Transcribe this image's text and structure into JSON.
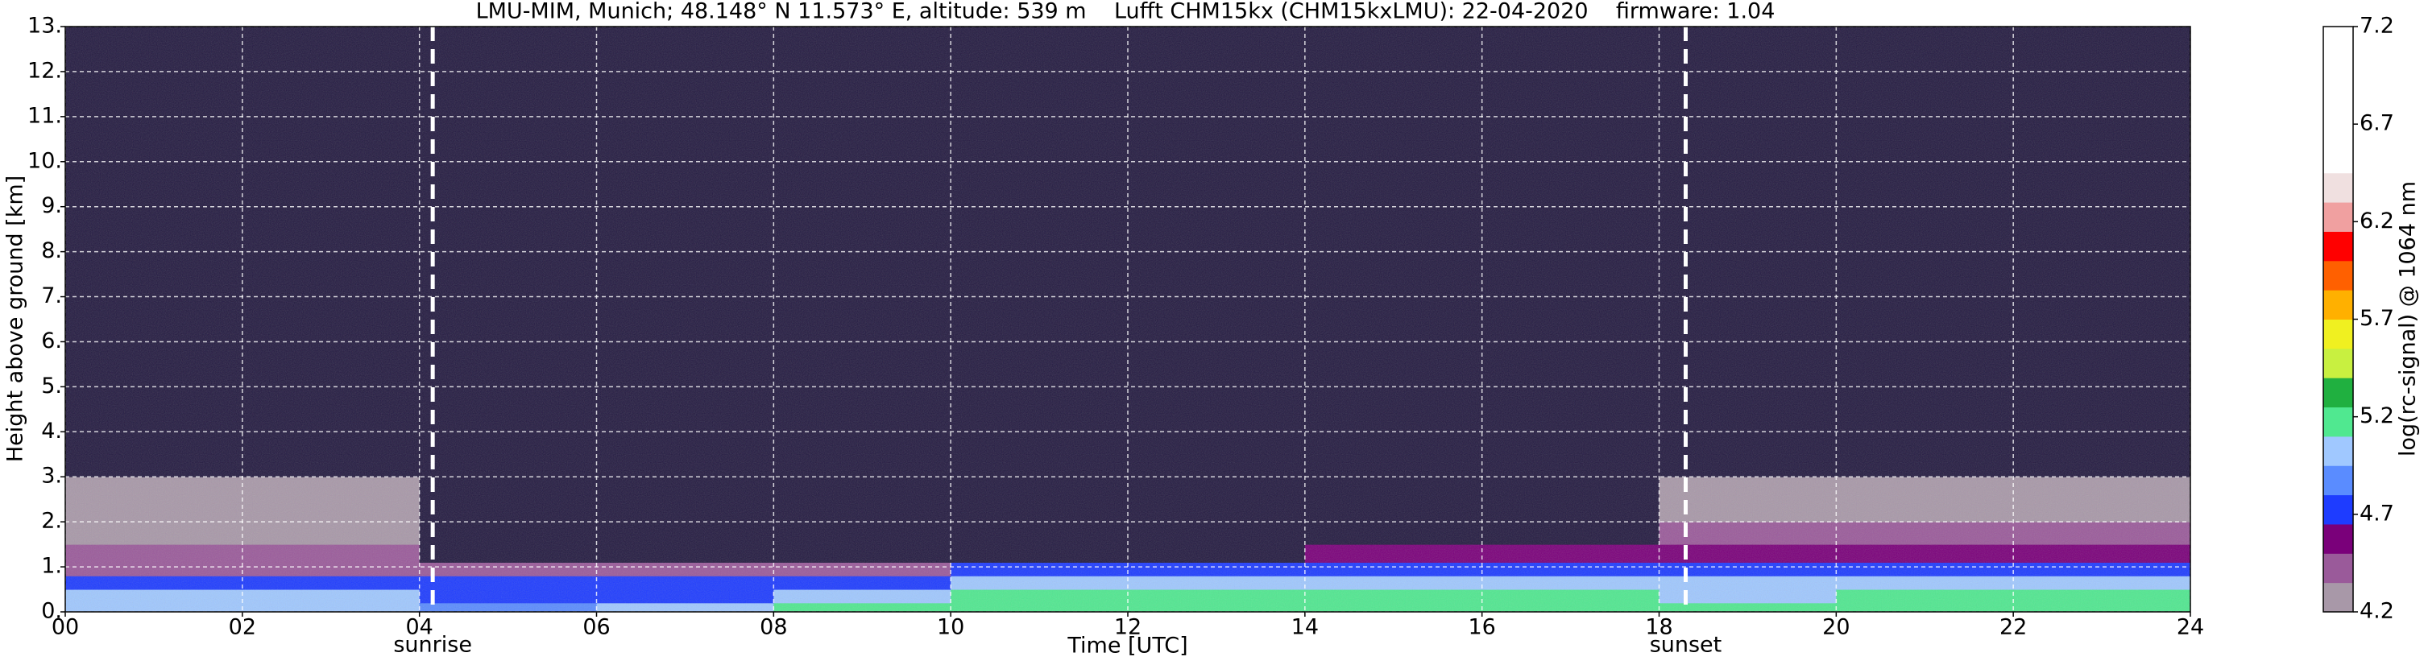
{
  "chart_data": {
    "type": "heatmap",
    "title": "LMU-MIM, Munich; 48.148° N 11.573° E, altitude: 539 m    Lufft CHM15kx (CHM15kxLMU): 22-04-2020    firmware: 1.04",
    "x_label": "Time [UTC]",
    "y_label": "Height above ground [km]",
    "colorbar_label": "log(rc-signal) @ 1064 nm",
    "x_bins": [
      0,
      2,
      4,
      6,
      8,
      10,
      12,
      14,
      16,
      18,
      20,
      22,
      24
    ],
    "y_bins": [
      0,
      0.2,
      0.5,
      0.8,
      1.1,
      1.5,
      2,
      3,
      13
    ],
    "values": [
      [
        4.95,
        4.95,
        4.9,
        5.1,
        5.2,
        5.2,
        5.2,
        5.2,
        5.2,
        5.2,
        5.2,
        5.2
      ],
      [
        4.95,
        4.95,
        4.8,
        4.8,
        5.1,
        5.15,
        5.15,
        5.15,
        5.15,
        5.0,
        5.2,
        5.2
      ],
      [
        4.75,
        4.75,
        4.7,
        4.7,
        4.7,
        5.1,
        5.1,
        5.1,
        5.1,
        4.95,
        4.95,
        4.95
      ],
      [
        4.5,
        4.5,
        4.5,
        4.5,
        4.5,
        4.7,
        4.7,
        4.8,
        4.8,
        4.8,
        4.8,
        4.8
      ],
      [
        4.4,
        4.4,
        4.1,
        4.1,
        4.1,
        4.1,
        4.1,
        4.6,
        4.6,
        4.6,
        4.6,
        4.6
      ],
      [
        4.3,
        4.3,
        4.0,
        4.0,
        4.0,
        4.0,
        4.0,
        4.0,
        4.0,
        4.4,
        4.4,
        4.4
      ],
      [
        4.2,
        4.2,
        4.0,
        4.0,
        4.0,
        4.0,
        4.0,
        4.0,
        4.0,
        4.2,
        4.2,
        4.2
      ],
      [
        4.0,
        4.0,
        4.0,
        4.0,
        4.0,
        4.0,
        4.0,
        4.0,
        4.0,
        4.0,
        4.0,
        4.0
      ]
    ],
    "xlim": [
      0,
      24
    ],
    "ylim": [
      0,
      13
    ],
    "xticks": [
      {
        "value": 0,
        "label": "00"
      },
      {
        "value": 2,
        "label": "02"
      },
      {
        "value": 4,
        "label": "04"
      },
      {
        "value": 6,
        "label": "06"
      },
      {
        "value": 8,
        "label": "08"
      },
      10,
      12,
      14,
      16,
      18,
      20,
      22,
      24
    ],
    "yticks": [
      {
        "value": 0,
        "label": "0."
      },
      {
        "value": 1,
        "label": "1."
      },
      {
        "value": 2,
        "label": "2."
      },
      {
        "value": 3,
        "label": "3."
      },
      {
        "value": 4,
        "label": "4."
      },
      {
        "value": 5,
        "label": "5."
      },
      {
        "value": 6,
        "label": "6."
      },
      {
        "value": 7,
        "label": "7."
      },
      {
        "value": 8,
        "label": "8."
      },
      {
        "value": 9,
        "label": "9."
      },
      {
        "value": 10,
        "label": "10."
      },
      {
        "value": 11,
        "label": "11."
      },
      {
        "value": 12,
        "label": "12."
      },
      {
        "value": 13,
        "label": "13."
      }
    ],
    "clim": [
      4.2,
      7.2
    ],
    "cticks": [
      4.2,
      4.7,
      5.2,
      5.7,
      6.2,
      6.7,
      7.2
    ],
    "colors": [
      "#a898a8",
      "#9a5a9a",
      "#7a007a",
      "#1e3cff",
      "#5a8cff",
      "#a0c8ff",
      "#50e890",
      "#20b040",
      "#c8f040",
      "#f0f020",
      "#ffb000",
      "#ff6000",
      "#ff0000",
      "#f0a0a0",
      "#f0e0e0",
      "#ffffff",
      "#ffffff",
      "#ffffff",
      "#ffffff",
      "#ffffff"
    ],
    "under_color": "#231a40",
    "grid": true,
    "annotations": [
      {
        "label": "sunrise",
        "x": 4.15
      },
      {
        "label": "sunset",
        "x": 18.3
      }
    ]
  }
}
